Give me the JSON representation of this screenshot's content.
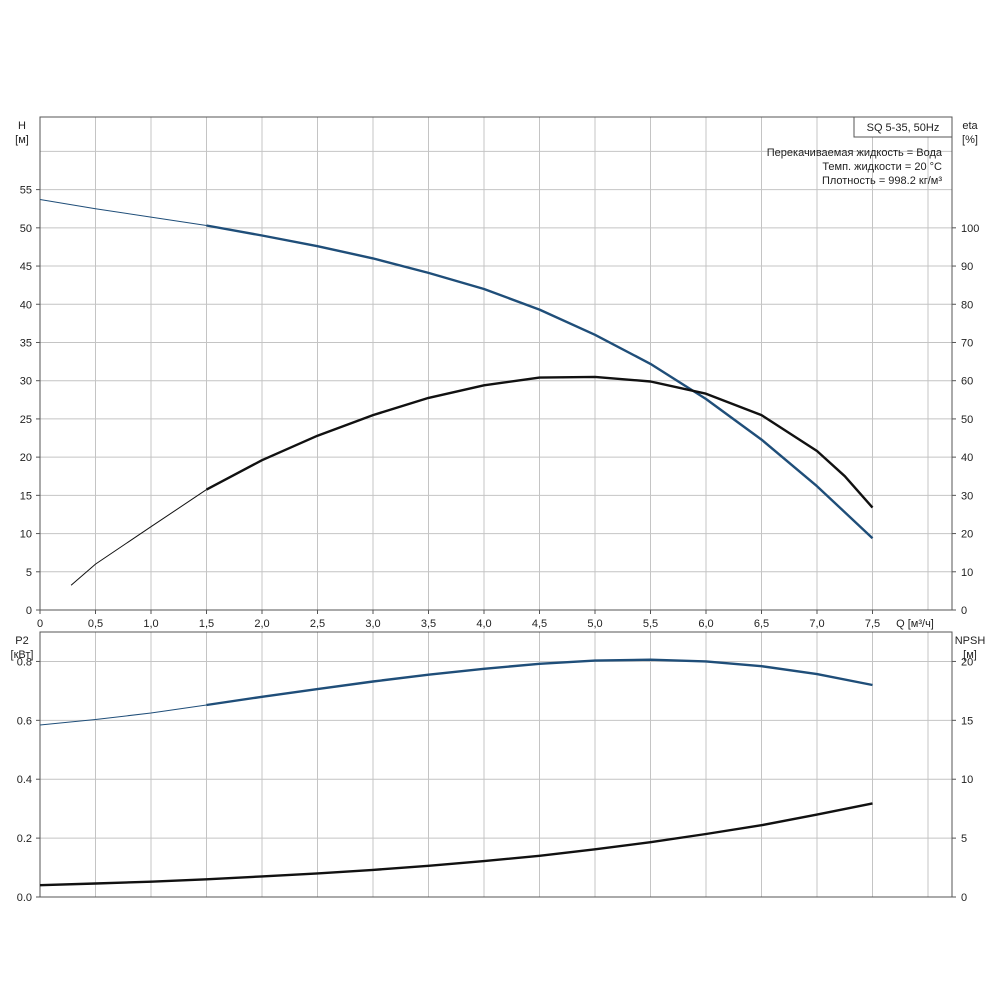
{
  "title_box": "SQ 5-35, 50Hz",
  "notes": [
    "Перекачиваемая жидкость = Вода",
    "Темп. жидкости = 20 °C",
    "Плотность = 998.2 кг/м³"
  ],
  "colors": {
    "blue_curve": "#1f4e79",
    "black_curve": "#111111",
    "grid": "#c4c4c4"
  },
  "chart_data": [
    {
      "type": "line",
      "xlabel": "Q [м³/ч]",
      "ylabel": [
        "H",
        "[м]"
      ],
      "y2label": [
        "eta",
        "[%]"
      ],
      "xlim": [
        0,
        8.1
      ],
      "ylim": [
        0,
        64.5
      ],
      "y2lim": [
        0,
        129
      ],
      "x_ticks": [
        0,
        0.5,
        1.0,
        1.5,
        2.0,
        2.5,
        3.0,
        3.5,
        4.0,
        4.5,
        5.0,
        5.5,
        6.0,
        6.5,
        7.0,
        7.5
      ],
      "x_tick_labels": [
        "0",
        "0,5",
        "1,0",
        "1,5",
        "2,0",
        "2,5",
        "3,0",
        "3,5",
        "4,0",
        "4,5",
        "5,0",
        "5,5",
        "6,0",
        "6,5",
        "7,0",
        "7,5"
      ],
      "y_ticks": [
        0,
        5,
        10,
        15,
        20,
        25,
        30,
        35,
        40,
        45,
        50,
        55
      ],
      "y2_ticks": [
        0,
        10,
        20,
        30,
        40,
        50,
        60,
        70,
        80,
        90,
        100
      ],
      "grid": true,
      "series": [
        {
          "axis": "left",
          "color": "#1f4e79",
          "thin_until": 1.5,
          "x": [
            0,
            0.5,
            1.0,
            1.5,
            2.0,
            2.5,
            3.0,
            3.5,
            4.0,
            4.5,
            5.0,
            5.5,
            6.0,
            6.5,
            7.0,
            7.5
          ],
          "y": [
            53.7,
            52.5,
            51.4,
            50.3,
            49.0,
            47.6,
            46.0,
            44.1,
            42.0,
            39.3,
            36.0,
            32.2,
            27.6,
            22.3,
            16.2,
            9.4
          ]
        },
        {
          "axis": "right",
          "color": "#111111",
          "thin_until": 1.5,
          "x": [
            0.28,
            0.5,
            1.0,
            1.5,
            2.0,
            2.5,
            3.0,
            3.5,
            4.0,
            4.5,
            5.0,
            5.5,
            6.0,
            6.5,
            7.0,
            7.25,
            7.5
          ],
          "y": [
            6.5,
            12.0,
            21.8,
            31.5,
            39.2,
            45.6,
            51.0,
            55.5,
            58.8,
            60.8,
            61.0,
            59.8,
            56.6,
            51.0,
            41.6,
            35.0,
            26.8
          ]
        }
      ]
    },
    {
      "type": "line",
      "xlabel": "",
      "ylabel": [
        "P2",
        "[кВт]"
      ],
      "y2label": [
        "NPSH",
        "[м]"
      ],
      "xlim": [
        0,
        8.1
      ],
      "ylim": [
        0,
        0.9
      ],
      "y2lim": [
        0,
        22.5
      ],
      "y_ticks": [
        0,
        0.2,
        0.4,
        0.6,
        0.8
      ],
      "y_tick_labels": [
        "0.0",
        "0.2",
        "0.4",
        "0.6",
        "0.8"
      ],
      "y2_ticks": [
        0,
        5,
        10,
        15,
        20
      ],
      "grid": true,
      "series": [
        {
          "axis": "left",
          "color": "#1f4e79",
          "thin_until": 1.5,
          "x": [
            0,
            0.5,
            1.0,
            1.5,
            2.0,
            2.5,
            3.0,
            3.5,
            4.0,
            4.5,
            5.0,
            5.5,
            6.0,
            6.5,
            7.0,
            7.5
          ],
          "y": [
            0.584,
            0.603,
            0.625,
            0.652,
            0.68,
            0.706,
            0.732,
            0.755,
            0.775,
            0.792,
            0.803,
            0.806,
            0.8,
            0.784,
            0.757,
            0.72
          ]
        },
        {
          "axis": "right",
          "color": "#111111",
          "thin_until": 0,
          "x": [
            0,
            0.5,
            1.0,
            1.5,
            2.0,
            2.5,
            3.0,
            3.5,
            4.0,
            4.5,
            5.0,
            5.5,
            6.0,
            6.5,
            7.0,
            7.5
          ],
          "y": [
            1.0,
            1.15,
            1.3,
            1.5,
            1.75,
            2.0,
            2.3,
            2.65,
            3.05,
            3.5,
            4.05,
            4.65,
            5.35,
            6.1,
            7.0,
            7.95
          ]
        }
      ]
    }
  ]
}
